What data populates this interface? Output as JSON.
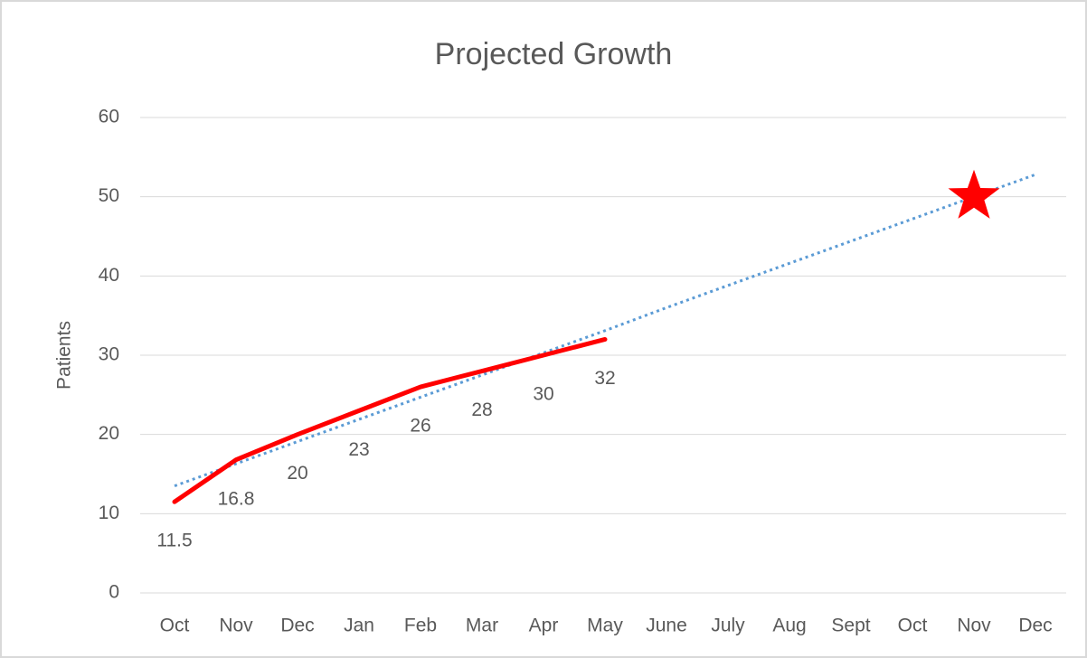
{
  "chart_data": {
    "type": "line",
    "title": "Projected Growth",
    "y_label": "Patients",
    "categories": [
      "Oct",
      "Nov",
      "Dec",
      "Jan",
      "Feb",
      "Mar",
      "Apr",
      "May",
      "June",
      "July",
      "Aug",
      "Sept",
      "Oct",
      "Nov",
      "Dec"
    ],
    "series": [
      {
        "color": "#ff0000",
        "style": "solid",
        "data_labels": true,
        "values": [
          11.5,
          16.8,
          20,
          23,
          26,
          28,
          30,
          32,
          null,
          null,
          null,
          null,
          null,
          null,
          null
        ]
      },
      {
        "color": "#5b9bd5",
        "style": "dotted",
        "data_labels": false,
        "values": [
          13.5,
          16.3,
          19.1,
          21.9,
          24.7,
          27.5,
          30.3,
          33.1,
          36.0,
          38.8,
          41.6,
          44.4,
          47.2,
          50.0,
          52.8
        ]
      },
      {
        "color": "#ff0000",
        "style": "star",
        "data_labels": false,
        "values": [
          null,
          null,
          null,
          null,
          null,
          null,
          null,
          null,
          null,
          null,
          null,
          null,
          null,
          50,
          null
        ]
      }
    ],
    "ylim": [
      0,
      60
    ],
    "yticks": [
      0,
      10,
      20,
      30,
      40,
      50,
      60
    ],
    "grid": true
  }
}
